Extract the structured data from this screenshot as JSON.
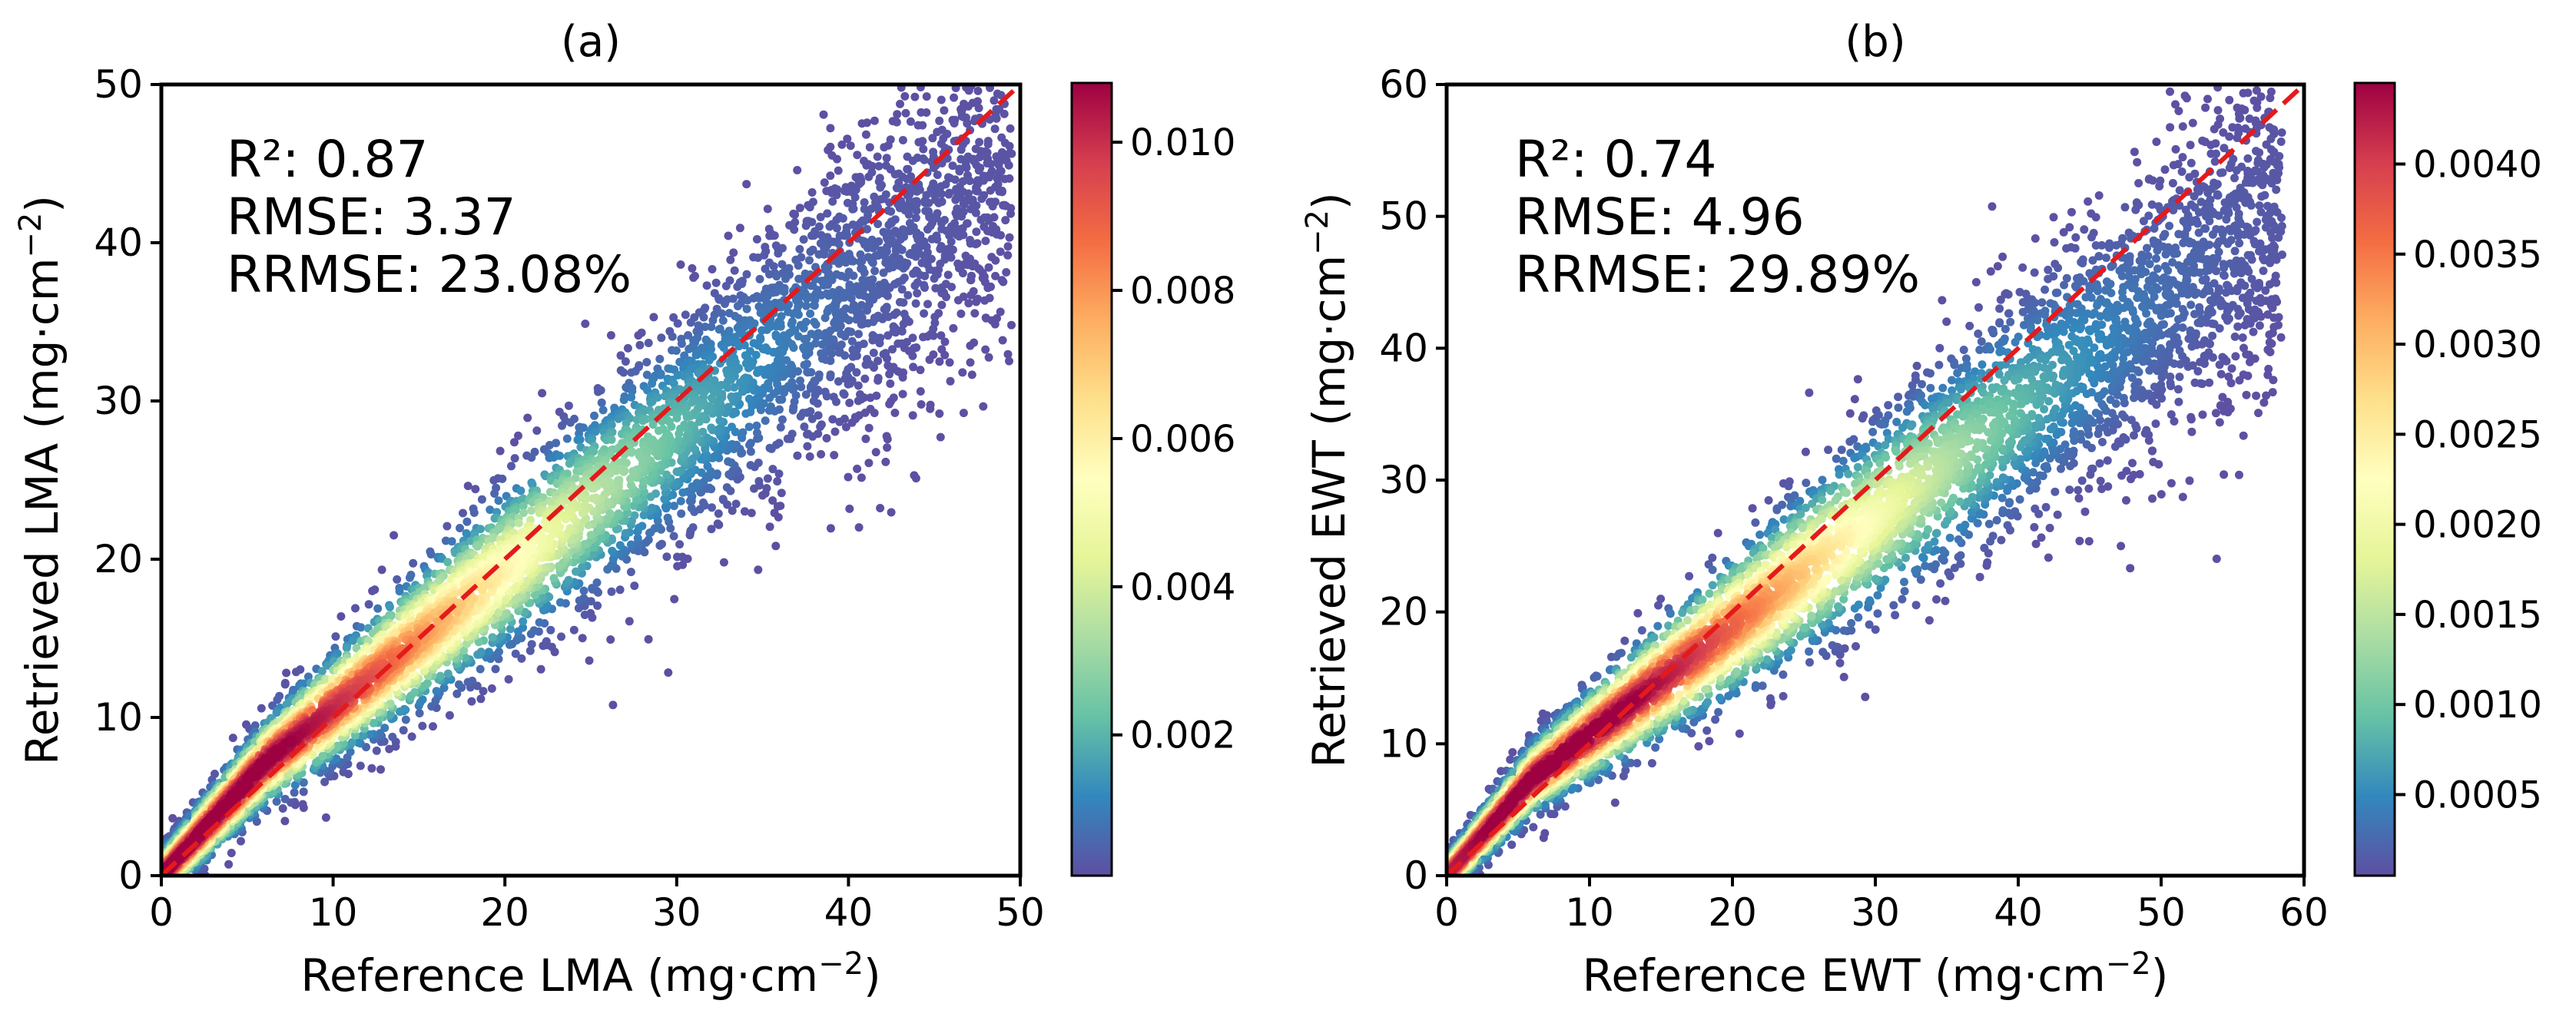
{
  "chart_data": [
    {
      "type": "scatter",
      "title": "(a)",
      "xlabel": "Reference LMA (mg·cm",
      "ylabel": "Retrieved LMA (mg·cm",
      "unit_exponent": "−2",
      "xlim": [
        0,
        50
      ],
      "ylim": [
        0,
        50
      ],
      "xticks": [
        "0",
        "10",
        "20",
        "30",
        "40",
        "50"
      ],
      "yticks": [
        "0",
        "10",
        "20",
        "30",
        "40",
        "50"
      ],
      "stats": [
        "R²: 0.87",
        "RMSE: 3.37",
        "RRMSE: 23.08%"
      ],
      "reference_line": {
        "style": "dashed",
        "color": "#e41a1c",
        "from": [
          0,
          0
        ],
        "to": [
          50,
          50
        ]
      },
      "colorbar": {
        "colormap": "Spectral_r",
        "range": [
          0.0001,
          0.0108
        ],
        "ticks": [
          "0.002",
          "0.004",
          "0.006",
          "0.008",
          "0.010"
        ],
        "tick_values": [
          0.002,
          0.004,
          0.006,
          0.008,
          0.01
        ]
      },
      "distribution": {
        "description": "point density along a band",
        "centerline_slope": 0.87,
        "centerline_intercept": 1.9,
        "x_range": [
          0.2,
          49.5
        ],
        "peak_x": 3
      }
    },
    {
      "type": "scatter",
      "title": "(b)",
      "xlabel": "Reference EWT (mg·cm",
      "ylabel": "Retrieved EWT (mg·cm",
      "unit_exponent": "−2",
      "xlim": [
        0,
        60
      ],
      "ylim": [
        0,
        60
      ],
      "xticks": [
        "0",
        "10",
        "20",
        "30",
        "40",
        "50",
        "60"
      ],
      "yticks": [
        "0",
        "10",
        "20",
        "30",
        "40",
        "50",
        "60"
      ],
      "stats": [
        "R²: 0.74",
        "RMSE: 4.96",
        "RRMSE: 29.89%"
      ],
      "reference_line": {
        "style": "dashed",
        "color": "#e41a1c",
        "from": [
          0,
          0
        ],
        "to": [
          60,
          60
        ]
      },
      "colorbar": {
        "colormap": "Spectral_r",
        "range": [
          5e-05,
          0.00445
        ],
        "ticks": [
          "0.0005",
          "0.0010",
          "0.0015",
          "0.0020",
          "0.0025",
          "0.0030",
          "0.0035",
          "0.0040"
        ],
        "tick_values": [
          0.0005,
          0.001,
          0.0015,
          0.002,
          0.0025,
          0.003,
          0.0035,
          0.004
        ]
      },
      "distribution": {
        "description": "point density along a band",
        "centerline_slope": 0.82,
        "centerline_intercept": 2.5,
        "x_range": [
          0.2,
          58.5
        ],
        "peak_x": 8
      }
    }
  ]
}
